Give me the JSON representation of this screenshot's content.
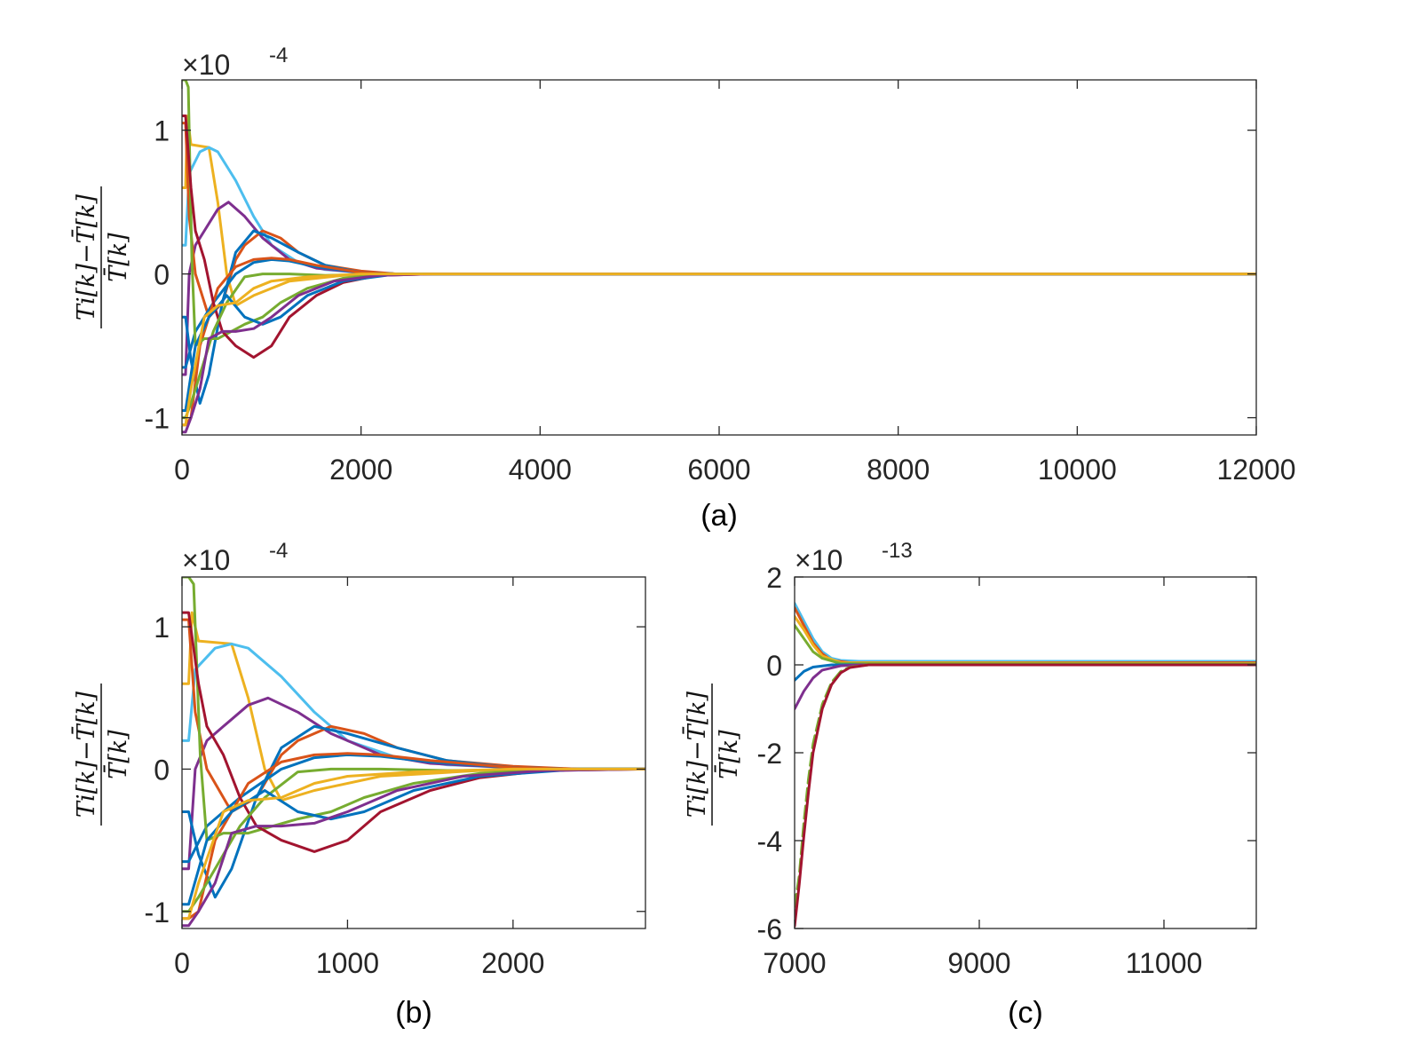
{
  "colors": [
    "#0072BD",
    "#D95319",
    "#EDB120",
    "#7E2F8E",
    "#77AC30",
    "#4DBEEE",
    "#A2142F"
  ],
  "chart_data": [
    {
      "id": "a",
      "type": "line",
      "caption": "(a)",
      "multiplier_base": "×10",
      "multiplier_exp": "-4",
      "ylabel_top": "Ti[k]−T̄[k]",
      "ylabel_bottom": "T̄[k]",
      "xlim": [
        0,
        12000
      ],
      "ylim": [
        -1.12,
        1.35
      ],
      "xticks": [
        0,
        2000,
        4000,
        6000,
        8000,
        10000,
        12000
      ],
      "xtick_labels": [
        "0",
        "2000",
        "4000",
        "6000",
        "8000",
        "10000",
        "12000"
      ],
      "yticks": [
        -1,
        0,
        1
      ],
      "ytick_labels": [
        "-1",
        "0",
        "1"
      ]
    },
    {
      "id": "b",
      "type": "line",
      "caption": "(b)",
      "multiplier_base": "×10",
      "multiplier_exp": "-4",
      "ylabel_top": "Ti[k]−T̄[k]",
      "ylabel_bottom": "T̄[k]",
      "xlim": [
        0,
        2800
      ],
      "ylim": [
        -1.12,
        1.35
      ],
      "xticks": [
        0,
        1000,
        2000
      ],
      "xtick_labels": [
        "0",
        "1000",
        "2000"
      ],
      "yticks": [
        -1,
        0,
        1
      ],
      "ytick_labels": [
        "-1",
        "0",
        "1"
      ]
    },
    {
      "id": "c",
      "type": "line",
      "caption": "(c)",
      "multiplier_base": "×10",
      "multiplier_exp": "-13",
      "ylabel_top": "Ti[k]−T̄[k]",
      "ylabel_bottom": "T̄[k]",
      "xlim": [
        7000,
        12000
      ],
      "ylim": [
        -6,
        2
      ],
      "xticks": [
        7000,
        9000,
        11000
      ],
      "xtick_labels": [
        "7000",
        "9000",
        "11000"
      ],
      "yticks": [
        -6,
        -4,
        -2,
        0,
        2
      ],
      "ytick_labels": [
        "-6",
        "-4",
        "-2",
        "0",
        "2"
      ]
    }
  ],
  "series_ab": [
    {
      "name": "s1",
      "color_index": 2,
      "points": [
        [
          0,
          0.6
        ],
        [
          40,
          0.6
        ],
        [
          60,
          1.1
        ],
        [
          100,
          0.9
        ],
        [
          300,
          0.88
        ],
        [
          400,
          0.5
        ],
        [
          500,
          0.0
        ],
        [
          600,
          -0.22
        ],
        [
          800,
          -0.15
        ],
        [
          1200,
          -0.05
        ],
        [
          1800,
          -0.01
        ],
        [
          2400,
          0
        ],
        [
          2800,
          0
        ]
      ]
    },
    {
      "name": "s2",
      "color_index": 5,
      "points": [
        [
          0,
          0.2
        ],
        [
          40,
          0.2
        ],
        [
          80,
          0.7
        ],
        [
          200,
          0.85
        ],
        [
          300,
          0.88
        ],
        [
          400,
          0.85
        ],
        [
          600,
          0.65
        ],
        [
          800,
          0.4
        ],
        [
          1000,
          0.2
        ],
        [
          1300,
          0.08
        ],
        [
          1600,
          0.03
        ],
        [
          2000,
          0.01
        ],
        [
          2400,
          0
        ],
        [
          2800,
          0
        ]
      ]
    },
    {
      "name": "s3",
      "color_index": 3,
      "points": [
        [
          0,
          -0.7
        ],
        [
          40,
          -0.7
        ],
        [
          80,
          0.0
        ],
        [
          150,
          0.2
        ],
        [
          250,
          0.3
        ],
        [
          400,
          0.45
        ],
        [
          520,
          0.5
        ],
        [
          700,
          0.4
        ],
        [
          900,
          0.25
        ],
        [
          1200,
          0.1
        ],
        [
          1500,
          0.04
        ],
        [
          2000,
          0.01
        ],
        [
          2400,
          0
        ],
        [
          2800,
          0
        ]
      ]
    },
    {
      "name": "s4",
      "color_index": 1,
      "points": [
        [
          0,
          1.05
        ],
        [
          40,
          1.05
        ],
        [
          80,
          0.4
        ],
        [
          150,
          0.0
        ],
        [
          300,
          -0.3
        ],
        [
          450,
          -0.2
        ],
        [
          600,
          0.1
        ],
        [
          700,
          0.2
        ],
        [
          900,
          0.3
        ],
        [
          1100,
          0.25
        ],
        [
          1300,
          0.15
        ],
        [
          1600,
          0.06
        ],
        [
          2000,
          0.02
        ],
        [
          2400,
          0
        ],
        [
          2800,
          0
        ]
      ]
    },
    {
      "name": "s5",
      "color_index": 0,
      "points": [
        [
          0,
          -0.3
        ],
        [
          40,
          -0.3
        ],
        [
          100,
          -0.6
        ],
        [
          200,
          -0.9
        ],
        [
          300,
          -0.7
        ],
        [
          450,
          -0.2
        ],
        [
          600,
          0.15
        ],
        [
          800,
          0.3
        ],
        [
          1000,
          0.25
        ],
        [
          1300,
          0.15
        ],
        [
          1600,
          0.06
        ],
        [
          2000,
          0.01
        ],
        [
          2400,
          0
        ],
        [
          2800,
          0
        ]
      ]
    },
    {
      "name": "s6",
      "color_index": 0,
      "points": [
        [
          0,
          -0.65
        ],
        [
          40,
          -0.65
        ],
        [
          150,
          -0.4
        ],
        [
          350,
          -0.2
        ],
        [
          600,
          0.0
        ],
        [
          800,
          0.08
        ],
        [
          1000,
          0.1
        ],
        [
          1200,
          0.09
        ],
        [
          1500,
          0.05
        ],
        [
          2000,
          0.01
        ],
        [
          2400,
          0
        ],
        [
          2800,
          0
        ]
      ]
    },
    {
      "name": "s7",
      "color_index": 1,
      "points": [
        [
          0,
          -1.05
        ],
        [
          40,
          -1.05
        ],
        [
          100,
          -1.0
        ],
        [
          200,
          -0.5
        ],
        [
          400,
          -0.1
        ],
        [
          600,
          0.05
        ],
        [
          800,
          0.1
        ],
        [
          1000,
          0.11
        ],
        [
          1200,
          0.1
        ],
        [
          1500,
          0.06
        ],
        [
          2000,
          0.01
        ],
        [
          2400,
          0
        ],
        [
          2800,
          0
        ]
      ]
    },
    {
      "name": "s8",
      "color_index": 4,
      "points": [
        [
          0,
          1.35
        ],
        [
          40,
          1.35
        ],
        [
          70,
          1.3
        ],
        [
          110,
          0.1
        ],
        [
          150,
          -0.5
        ],
        [
          250,
          -0.45
        ],
        [
          400,
          -0.45
        ],
        [
          550,
          -0.4
        ],
        [
          700,
          -0.35
        ],
        [
          900,
          -0.3
        ],
        [
          1100,
          -0.2
        ],
        [
          1400,
          -0.1
        ],
        [
          1800,
          -0.03
        ],
        [
          2400,
          0
        ],
        [
          2800,
          0
        ]
      ]
    },
    {
      "name": "s9",
      "color_index": 6,
      "points": [
        [
          0,
          1.1
        ],
        [
          40,
          1.1
        ],
        [
          100,
          0.6
        ],
        [
          150,
          0.3
        ],
        [
          250,
          0.1
        ],
        [
          350,
          -0.2
        ],
        [
          450,
          -0.4
        ],
        [
          600,
          -0.5
        ],
        [
          800,
          -0.58
        ],
        [
          1000,
          -0.5
        ],
        [
          1200,
          -0.3
        ],
        [
          1500,
          -0.15
        ],
        [
          1800,
          -0.06
        ],
        [
          2200,
          -0.01
        ],
        [
          2800,
          0
        ]
      ]
    },
    {
      "name": "s10",
      "color_index": 4,
      "points": [
        [
          0,
          -1.0
        ],
        [
          40,
          -1.0
        ],
        [
          100,
          -0.9
        ],
        [
          200,
          -0.7
        ],
        [
          350,
          -0.4
        ],
        [
          500,
          -0.2
        ],
        [
          700,
          -0.02
        ],
        [
          900,
          0.0
        ],
        [
          1200,
          0.0
        ],
        [
          1600,
          -0.01
        ],
        [
          2400,
          0
        ],
        [
          2800,
          0
        ]
      ]
    },
    {
      "name": "s11",
      "color_index": 0,
      "points": [
        [
          0,
          -0.95
        ],
        [
          40,
          -0.95
        ],
        [
          150,
          -0.5
        ],
        [
          300,
          -0.3
        ],
        [
          500,
          -0.15
        ],
        [
          700,
          -0.3
        ],
        [
          900,
          -0.35
        ],
        [
          1100,
          -0.3
        ],
        [
          1400,
          -0.15
        ],
        [
          1800,
          -0.05
        ],
        [
          2400,
          0
        ],
        [
          2800,
          0
        ]
      ]
    },
    {
      "name": "s12",
      "color_index": 3,
      "points": [
        [
          0,
          -1.1
        ],
        [
          40,
          -1.1
        ],
        [
          100,
          -1.0
        ],
        [
          200,
          -0.8
        ],
        [
          300,
          -0.45
        ],
        [
          450,
          -0.4
        ],
        [
          600,
          -0.4
        ],
        [
          800,
          -0.38
        ],
        [
          1000,
          -0.3
        ],
        [
          1300,
          -0.15
        ],
        [
          1700,
          -0.05
        ],
        [
          2200,
          -0.01
        ],
        [
          2800,
          0
        ]
      ]
    },
    {
      "name": "s13",
      "color_index": 2,
      "points": [
        [
          0,
          -1.05
        ],
        [
          40,
          -1.05
        ],
        [
          100,
          -0.8
        ],
        [
          250,
          -0.3
        ],
        [
          400,
          -0.22
        ],
        [
          600,
          -0.2
        ],
        [
          800,
          -0.1
        ],
        [
          1000,
          -0.05
        ],
        [
          1400,
          -0.02
        ],
        [
          2000,
          0
        ],
        [
          2800,
          0
        ]
      ]
    }
  ],
  "series_c": [
    {
      "name": "c1",
      "color_index": 5,
      "points": [
        [
          7000,
          1.4
        ],
        [
          7100,
          1.0
        ],
        [
          7200,
          0.6
        ],
        [
          7300,
          0.3
        ],
        [
          7400,
          0.15
        ],
        [
          7500,
          0.1
        ],
        [
          7700,
          0.08
        ],
        [
          12000,
          0.08
        ]
      ]
    },
    {
      "name": "c2",
      "color_index": 1,
      "points": [
        [
          7000,
          1.3
        ],
        [
          7100,
          0.9
        ],
        [
          7200,
          0.5
        ],
        [
          7300,
          0.25
        ],
        [
          7400,
          0.1
        ],
        [
          7600,
          0.05
        ],
        [
          12000,
          0.05
        ]
      ]
    },
    {
      "name": "c3",
      "color_index": 2,
      "points": [
        [
          7000,
          1.1
        ],
        [
          7100,
          0.8
        ],
        [
          7200,
          0.45
        ],
        [
          7300,
          0.2
        ],
        [
          7500,
          0.05
        ],
        [
          12000,
          0.03
        ]
      ]
    },
    {
      "name": "c4",
      "color_index": 4,
      "points": [
        [
          7000,
          0.9
        ],
        [
          7100,
          0.6
        ],
        [
          7200,
          0.3
        ],
        [
          7300,
          0.15
        ],
        [
          7500,
          0.03
        ],
        [
          12000,
          0.02
        ]
      ]
    },
    {
      "name": "c5",
      "color_index": 0,
      "points": [
        [
          7000,
          -0.35
        ],
        [
          7100,
          -0.15
        ],
        [
          7200,
          -0.05
        ],
        [
          7400,
          0.0
        ],
        [
          12000,
          0.0
        ]
      ]
    },
    {
      "name": "c6",
      "color_index": 3,
      "points": [
        [
          7000,
          -1.0
        ],
        [
          7100,
          -0.6
        ],
        [
          7200,
          -0.3
        ],
        [
          7300,
          -0.12
        ],
        [
          7500,
          -0.02
        ],
        [
          7700,
          0.0
        ],
        [
          12000,
          0.0
        ]
      ]
    },
    {
      "name": "c7",
      "color_index": 4,
      "points": [
        [
          7000,
          -5.5
        ],
        [
          7050,
          -4.8
        ],
        [
          7100,
          -3.6
        ],
        [
          7150,
          -2.6
        ],
        [
          7200,
          -1.8
        ],
        [
          7300,
          -0.9
        ],
        [
          7400,
          -0.4
        ],
        [
          7500,
          -0.15
        ],
        [
          7600,
          -0.05
        ],
        [
          7800,
          0.0
        ],
        [
          12000,
          0.0
        ]
      ]
    },
    {
      "name": "c8",
      "color_index": 6,
      "points": [
        [
          7000,
          -5.95
        ],
        [
          7050,
          -5.0
        ],
        [
          7100,
          -3.9
        ],
        [
          7150,
          -2.9
        ],
        [
          7200,
          -2.0
        ],
        [
          7300,
          -1.0
        ],
        [
          7400,
          -0.45
        ],
        [
          7500,
          -0.18
        ],
        [
          7600,
          -0.06
        ],
        [
          7800,
          0.0
        ],
        [
          12000,
          0.0
        ]
      ]
    }
  ]
}
